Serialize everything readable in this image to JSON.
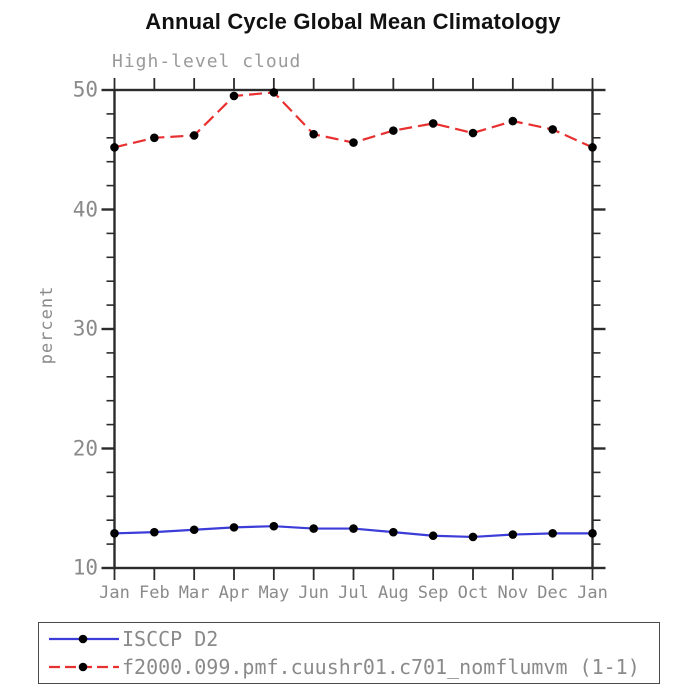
{
  "page": {
    "background": "#ffffff"
  },
  "chart_data": {
    "type": "line",
    "title": "Annual Cycle Global Mean Climatology",
    "subtitle": "High-level cloud",
    "ylabel": "percent",
    "xlabel": "",
    "categories": [
      "Jan",
      "Feb",
      "Mar",
      "Apr",
      "May",
      "Jun",
      "Jul",
      "Aug",
      "Sep",
      "Oct",
      "Nov",
      "Dec",
      "Jan"
    ],
    "ylim": [
      10,
      50
    ],
    "ytick_major": [
      10,
      20,
      30,
      40,
      50
    ],
    "ytick_minor_step": 2,
    "grid": false,
    "legend_position": "boxed-below-plot",
    "series": [
      {
        "name": "ISCCP D2",
        "line_style": "solid",
        "line_color": "#3c3cd9",
        "marker": "filled-circle",
        "marker_color": "#000000",
        "values": [
          12.9,
          13.0,
          13.2,
          13.4,
          13.5,
          13.3,
          13.3,
          13.0,
          12.7,
          12.6,
          12.8,
          12.9,
          12.9
        ]
      },
      {
        "name": "f2000.099.pmf.cuushr01.c701_nomflumvm (1-1)",
        "line_style": "dashed",
        "line_color": "#e93030",
        "marker": "filled-circle",
        "marker_color": "#000000",
        "values": [
          45.2,
          46.0,
          46.2,
          49.5,
          49.8,
          46.3,
          45.6,
          46.6,
          47.2,
          46.4,
          47.4,
          46.7,
          45.2
        ]
      }
    ],
    "colors": {
      "axis": "#2b2b2b",
      "label_text": "#8a8a8a",
      "title_text": "#111111",
      "legend_border": "#4a4a4a"
    }
  }
}
